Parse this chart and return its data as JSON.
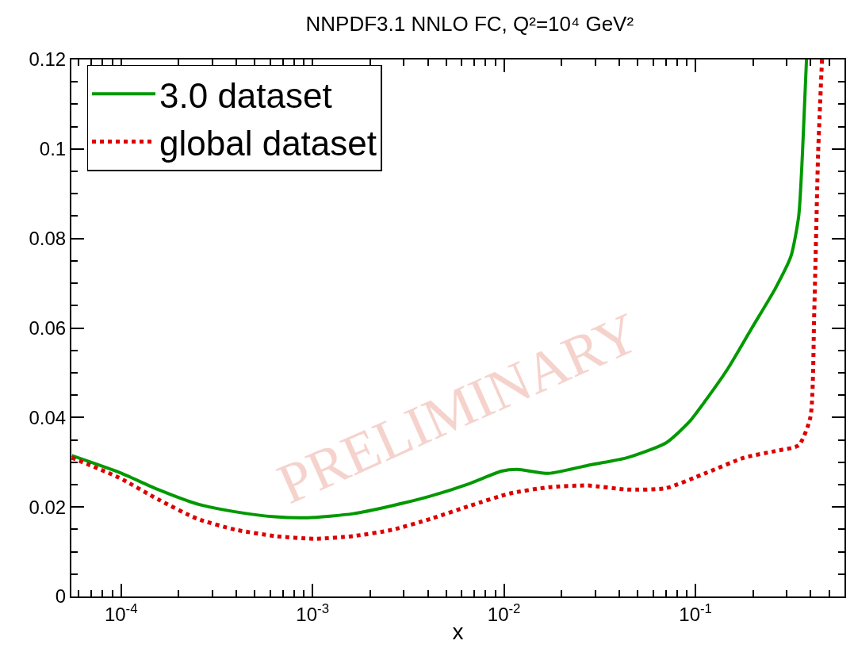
{
  "chart_data": {
    "type": "line",
    "title": "NNPDF3.1 NNLO FC, Q²=10⁴ GeV²",
    "xlabel": "x",
    "log": "x",
    "legend": "top left",
    "marker": "none",
    "xlim": [
      5.5e-05,
      0.6
    ],
    "xticks": [
      {
        "value": 0.0001,
        "label": "10$^{-4}$"
      },
      {
        "value": 0.001,
        "label": "10$^{-3}$"
      },
      {
        "value": 0.01,
        "label": "10$^{-2}$"
      },
      {
        "value": 0.1,
        "label": "10$^{-1}$"
      }
    ],
    "ylim": [
      0,
      0.12
    ],
    "yticks": [
      0,
      0.02,
      0.04,
      0.06,
      0.08,
      0.1,
      0.12
    ],
    "annotations": [
      "PRELIMINARY"
    ],
    "series": [
      {
        "name": "3.0 dataset",
        "color": "#009900",
        "line_style": "solid",
        "x": [
          5.53e-05,
          9.7e-05,
          0.000156,
          0.000249,
          0.000398,
          0.000637,
          0.00094,
          0.00163,
          0.00261,
          0.00417,
          0.00667,
          0.0097,
          0.0117,
          0.0171,
          0.0274,
          0.0438,
          0.07,
          0.0927,
          0.112,
          0.148,
          0.197,
          0.261,
          0.315,
          0.346,
          0.362,
          0.38
        ],
        "values": [
          0.0315,
          0.0278,
          0.0239,
          0.0207,
          0.0189,
          0.0178,
          0.0176,
          0.0185,
          0.0203,
          0.0225,
          0.0253,
          0.028,
          0.0284,
          0.0275,
          0.0293,
          0.031,
          0.0343,
          0.039,
          0.0436,
          0.051,
          0.06,
          0.0688,
          0.076,
          0.085,
          0.099,
          0.12
        ]
      },
      {
        "name": "global dataset",
        "color": "#dd0000",
        "line_style": "dotted",
        "x": [
          5.53e-05,
          9.7e-05,
          0.000156,
          0.000249,
          0.000398,
          0.000637,
          0.00102,
          0.00163,
          0.00261,
          0.00417,
          0.00667,
          0.0107,
          0.0171,
          0.0274,
          0.0438,
          0.07,
          0.112,
          0.179,
          0.261,
          0.346,
          0.398,
          0.417,
          0.437,
          0.458
        ],
        "values": [
          0.031,
          0.0266,
          0.0217,
          0.0174,
          0.0149,
          0.0135,
          0.0129,
          0.0135,
          0.0149,
          0.0174,
          0.0203,
          0.023,
          0.0244,
          0.0248,
          0.0239,
          0.0242,
          0.0275,
          0.031,
          0.0325,
          0.0338,
          0.04,
          0.0634,
          0.099,
          0.12
        ]
      }
    ]
  }
}
